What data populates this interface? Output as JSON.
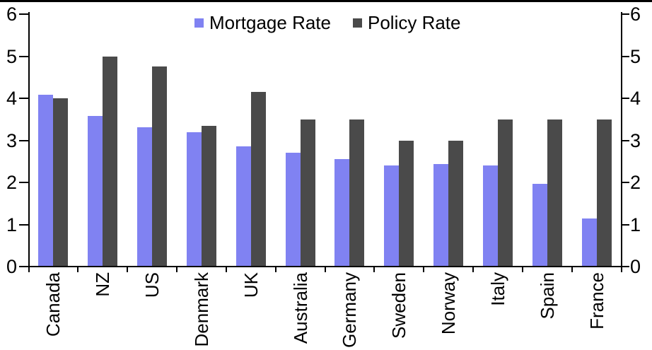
{
  "chart_data": {
    "type": "bar",
    "categories": [
      "Canada",
      "NZ",
      "US",
      "Denmark",
      "UK",
      "Australia",
      "Germany",
      "Sweden",
      "Norway",
      "Italy",
      "Spain",
      "France"
    ],
    "series": [
      {
        "name": "Mortgage Rate",
        "color": "#8082F2",
        "values": [
          4.08,
          3.58,
          3.31,
          3.2,
          2.85,
          2.7,
          2.55,
          2.4,
          2.43,
          2.4,
          1.97,
          1.15
        ]
      },
      {
        "name": "Policy Rate",
        "color": "#4A4A4A",
        "values": [
          4.0,
          5.0,
          4.75,
          3.35,
          4.15,
          3.5,
          3.5,
          3.0,
          3.0,
          3.5,
          3.5,
          3.5
        ]
      }
    ],
    "ylim": [
      0,
      6
    ],
    "yticks": [
      0,
      1,
      2,
      3,
      4,
      5,
      6
    ],
    "y_axis_sides": [
      "left",
      "right"
    ],
    "grid": false,
    "legend_position": "top-center"
  }
}
